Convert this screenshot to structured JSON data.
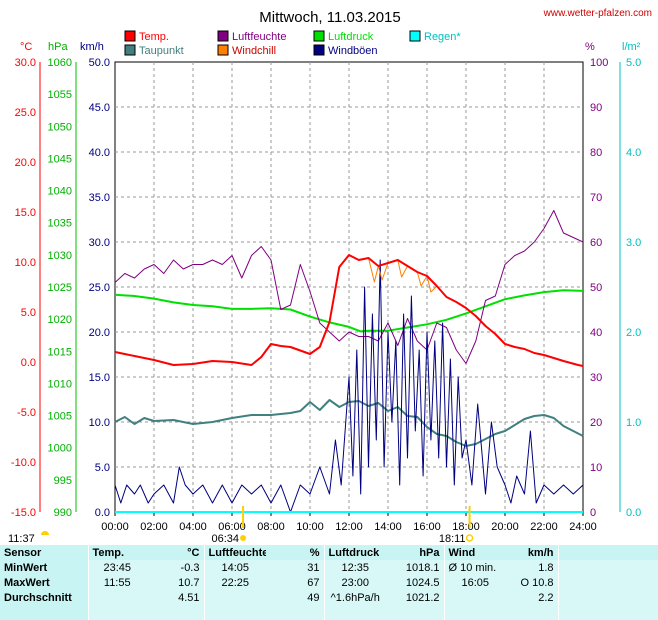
{
  "header": {
    "title": "Mittwoch, 11.03.2015",
    "site": "www.wetter-pfalzen.com"
  },
  "colors": {
    "temp": "#ff0000",
    "taupunkt": "#408080",
    "luftfeuchte": "#800080",
    "windchill": "#ff8000",
    "luftdruck": "#00e000",
    "windboen": "#000080",
    "regen": "#00ffff"
  },
  "chart_data": {
    "type": "line",
    "x_axis": {
      "range_hours": [
        0,
        24
      ],
      "ticks": [
        "00:00",
        "02:00",
        "04:00",
        "06:00",
        "08:00",
        "10:00",
        "12:00",
        "14:00",
        "16:00",
        "18:00",
        "20:00",
        "22:00",
        "24:00"
      ]
    },
    "axes": {
      "temp": {
        "unit": "°C",
        "range": [
          -15,
          30
        ],
        "ticks": [
          "30.0",
          "25.0",
          "20.0",
          "15.0",
          "10.0",
          "5.0",
          "0.0",
          "-5.0",
          "-10.0",
          "-15.0"
        ]
      },
      "pressure": {
        "unit": "hPa",
        "range": [
          990,
          1060
        ],
        "ticks": [
          "1060",
          "1055",
          "1050",
          "1045",
          "1040",
          "1035",
          "1030",
          "1025",
          "1020",
          "1015",
          "1010",
          "1005",
          "1000",
          "995",
          "990"
        ]
      },
      "wind": {
        "unit": "km/h",
        "range": [
          0,
          50
        ],
        "ticks": [
          "50.0",
          "45.0",
          "40.0",
          "35.0",
          "30.0",
          "25.0",
          "20.0",
          "15.0",
          "10.0",
          "5.0",
          "0.0"
        ]
      },
      "humidity": {
        "unit": "%",
        "range": [
          0,
          100
        ],
        "ticks": [
          "100",
          "90",
          "80",
          "70",
          "60",
          "50",
          "40",
          "30",
          "20",
          "10",
          "0"
        ]
      },
      "rain": {
        "unit": "l/m²",
        "range": [
          0,
          5
        ],
        "ticks": [
          "5.0",
          "4.0",
          "3.0",
          "2.0",
          "1.0",
          "0.0"
        ]
      }
    },
    "legend": [
      {
        "key": "temp",
        "label": "Temp."
      },
      {
        "key": "luftfeuchte",
        "label": "Luftfeuchte"
      },
      {
        "key": "luftdruck",
        "label": "Luftdruck"
      },
      {
        "key": "regen",
        "label": "Regen*"
      },
      {
        "key": "taupunkt",
        "label": "Taupunkt"
      },
      {
        "key": "windchill",
        "label": "Windchill"
      },
      {
        "key": "windboen",
        "label": "Windböen"
      }
    ],
    "sun": {
      "sunrise": "06:34",
      "sunset": "18:11",
      "moonrise": "11:37"
    },
    "series": [
      {
        "key": "temp",
        "axis": "temp",
        "points": [
          [
            0,
            1.0
          ],
          [
            1,
            0.6
          ],
          [
            2,
            0.2
          ],
          [
            3,
            -0.3
          ],
          [
            4,
            -0.2
          ],
          [
            5,
            0.1
          ],
          [
            6,
            0.0
          ],
          [
            7,
            -0.3
          ],
          [
            7.5,
            0.5
          ],
          [
            8,
            1.8
          ],
          [
            8.5,
            1.6
          ],
          [
            9,
            1.5
          ],
          [
            10,
            0.8
          ],
          [
            10.5,
            1.5
          ],
          [
            11,
            4.0
          ],
          [
            11.5,
            9.5
          ],
          [
            12,
            10.7
          ],
          [
            12.5,
            10.2
          ],
          [
            13,
            10.4
          ],
          [
            13.5,
            9.6
          ],
          [
            14,
            9.9
          ],
          [
            14.5,
            10.2
          ],
          [
            15,
            9.6
          ],
          [
            15.5,
            9.0
          ],
          [
            16,
            8.6
          ],
          [
            16.5,
            7.6
          ],
          [
            17,
            6.5
          ],
          [
            17.5,
            6.0
          ],
          [
            18,
            5.4
          ],
          [
            18.5,
            4.6
          ],
          [
            19,
            3.6
          ],
          [
            19.5,
            2.8
          ],
          [
            20,
            1.8
          ],
          [
            20.5,
            1.5
          ],
          [
            21,
            1.3
          ],
          [
            21.5,
            0.9
          ],
          [
            22,
            0.7
          ],
          [
            22.5,
            0.4
          ],
          [
            23,
            0.1
          ],
          [
            23.75,
            -0.3
          ],
          [
            24,
            -0.4
          ]
        ]
      },
      {
        "key": "windchill",
        "axis": "temp",
        "points": [
          [
            13,
            10.4
          ],
          [
            13.3,
            8.0
          ],
          [
            13.5,
            9.6
          ],
          [
            13.7,
            8.2
          ],
          [
            14,
            9.9
          ],
          [
            14.5,
            10.2
          ],
          [
            14.7,
            8.5
          ],
          [
            15,
            9.6
          ],
          [
            15.5,
            9.0
          ],
          [
            15.7,
            7.6
          ],
          [
            16,
            8.6
          ],
          [
            16.2,
            7.0
          ],
          [
            16.5,
            7.6
          ]
        ]
      },
      {
        "key": "taupunkt",
        "axis": "temp",
        "points": [
          [
            0,
            -6.0
          ],
          [
            0.5,
            -5.5
          ],
          [
            1,
            -6.2
          ],
          [
            1.5,
            -5.6
          ],
          [
            2,
            -5.9
          ],
          [
            3,
            -5.8
          ],
          [
            4,
            -6.2
          ],
          [
            5,
            -6.0
          ],
          [
            6,
            -5.6
          ],
          [
            7,
            -5.3
          ],
          [
            8,
            -5.3
          ],
          [
            9,
            -5.1
          ],
          [
            9.5,
            -4.9
          ],
          [
            10,
            -4.0
          ],
          [
            10.5,
            -4.8
          ],
          [
            11,
            -3.8
          ],
          [
            11.5,
            -4.5
          ],
          [
            12,
            -4.0
          ],
          [
            12.5,
            -3.9
          ],
          [
            13,
            -4.4
          ],
          [
            13.5,
            -4.1
          ],
          [
            14,
            -4.9
          ],
          [
            14.5,
            -4.5
          ],
          [
            15,
            -5.4
          ],
          [
            15.5,
            -5.5
          ],
          [
            16,
            -6.5
          ],
          [
            16.5,
            -7.2
          ],
          [
            17,
            -7.4
          ],
          [
            17.5,
            -8.0
          ],
          [
            18,
            -8.4
          ],
          [
            18.5,
            -8.2
          ],
          [
            19,
            -7.7
          ],
          [
            19.5,
            -7.2
          ],
          [
            20,
            -6.9
          ],
          [
            20.5,
            -6.3
          ],
          [
            21,
            -5.7
          ],
          [
            21.5,
            -5.4
          ],
          [
            22,
            -5.3
          ],
          [
            22.5,
            -5.6
          ],
          [
            23,
            -6.4
          ],
          [
            24,
            -7.4
          ]
        ]
      },
      {
        "key": "luftfeuchte",
        "axis": "humidity",
        "points": [
          [
            0,
            51
          ],
          [
            0.5,
            53
          ],
          [
            1,
            52
          ],
          [
            1.5,
            54
          ],
          [
            2,
            55
          ],
          [
            2.5,
            53
          ],
          [
            3,
            56
          ],
          [
            3.5,
            54
          ],
          [
            4,
            55
          ],
          [
            4.5,
            55
          ],
          [
            5,
            56
          ],
          [
            5.5,
            55
          ],
          [
            6,
            57
          ],
          [
            6.5,
            52
          ],
          [
            7,
            57
          ],
          [
            7.5,
            59
          ],
          [
            8,
            56
          ],
          [
            8.5,
            45
          ],
          [
            9,
            46
          ],
          [
            9.5,
            55
          ],
          [
            10,
            49
          ],
          [
            10.5,
            42
          ],
          [
            11,
            40
          ],
          [
            11.5,
            38
          ],
          [
            12,
            40
          ],
          [
            12.5,
            39
          ],
          [
            13,
            39
          ],
          [
            13.5,
            38
          ],
          [
            14,
            42
          ],
          [
            14.5,
            37
          ],
          [
            15,
            43
          ],
          [
            15.5,
            38
          ],
          [
            16,
            36
          ],
          [
            16.5,
            42
          ],
          [
            17,
            41
          ],
          [
            17.5,
            36
          ],
          [
            18,
            33
          ],
          [
            18.5,
            38
          ],
          [
            19,
            47
          ],
          [
            19.5,
            48
          ],
          [
            20,
            55
          ],
          [
            20.5,
            57
          ],
          [
            21,
            58
          ],
          [
            21.5,
            60
          ],
          [
            22,
            63
          ],
          [
            22.5,
            67
          ],
          [
            23,
            62
          ],
          [
            23.5,
            61
          ],
          [
            24,
            60
          ]
        ]
      },
      {
        "key": "luftdruck",
        "axis": "pressure",
        "points": [
          [
            0,
            1023.8
          ],
          [
            1,
            1023.6
          ],
          [
            2,
            1023.2
          ],
          [
            3,
            1022.6
          ],
          [
            4,
            1022.2
          ],
          [
            5,
            1022.0
          ],
          [
            6,
            1021.6
          ],
          [
            7,
            1021.6
          ],
          [
            8,
            1021.7
          ],
          [
            9,
            1021.5
          ],
          [
            10,
            1020.4
          ],
          [
            11,
            1019.5
          ],
          [
            12,
            1018.8
          ],
          [
            12.6,
            1018.1
          ],
          [
            13,
            1018.2
          ],
          [
            14,
            1018.2
          ],
          [
            15,
            1018.7
          ],
          [
            16,
            1019.2
          ],
          [
            17,
            1019.9
          ],
          [
            18,
            1020.9
          ],
          [
            19,
            1022.0
          ],
          [
            20,
            1023.1
          ],
          [
            21,
            1023.7
          ],
          [
            22,
            1024.2
          ],
          [
            23,
            1024.5
          ],
          [
            24,
            1024.4
          ]
        ]
      },
      {
        "key": "windboen",
        "axis": "wind",
        "points": [
          [
            0,
            3
          ],
          [
            0.3,
            1
          ],
          [
            0.6,
            3
          ],
          [
            1,
            2
          ],
          [
            1.3,
            3
          ],
          [
            1.7,
            1
          ],
          [
            2,
            2
          ],
          [
            2.5,
            3
          ],
          [
            3,
            1
          ],
          [
            3.3,
            5
          ],
          [
            3.6,
            3
          ],
          [
            4,
            2
          ],
          [
            4.5,
            3
          ],
          [
            5,
            1
          ],
          [
            5.5,
            3
          ],
          [
            6,
            1
          ],
          [
            6.5,
            3
          ],
          [
            7,
            2
          ],
          [
            7.5,
            3
          ],
          [
            8,
            1
          ],
          [
            8.5,
            3
          ],
          [
            9,
            0
          ],
          [
            9.5,
            3
          ],
          [
            10,
            2
          ],
          [
            10.5,
            5
          ],
          [
            11,
            2
          ],
          [
            11.3,
            8
          ],
          [
            11.6,
            3
          ],
          [
            12,
            15
          ],
          [
            12.2,
            4
          ],
          [
            12.4,
            18
          ],
          [
            12.6,
            2
          ],
          [
            12.8,
            25
          ],
          [
            13,
            5
          ],
          [
            13.2,
            22
          ],
          [
            13.4,
            8
          ],
          [
            13.6,
            28
          ],
          [
            13.8,
            5
          ],
          [
            14,
            20
          ],
          [
            14.2,
            10
          ],
          [
            14.4,
            19
          ],
          [
            14.6,
            3
          ],
          [
            14.8,
            22
          ],
          [
            15,
            6
          ],
          [
            15.2,
            24
          ],
          [
            15.4,
            9
          ],
          [
            15.6,
            18
          ],
          [
            15.8,
            4
          ],
          [
            16,
            20
          ],
          [
            16.2,
            8
          ],
          [
            16.4,
            19
          ],
          [
            16.6,
            6
          ],
          [
            16.8,
            21
          ],
          [
            17,
            5
          ],
          [
            17.2,
            17
          ],
          [
            17.4,
            3
          ],
          [
            17.6,
            15
          ],
          [
            17.8,
            6
          ],
          [
            18,
            8
          ],
          [
            18.3,
            3
          ],
          [
            18.6,
            12
          ],
          [
            19,
            2
          ],
          [
            19.3,
            10
          ],
          [
            19.6,
            5
          ],
          [
            20,
            3
          ],
          [
            20.3,
            1
          ],
          [
            20.6,
            4
          ],
          [
            21,
            2
          ],
          [
            21.3,
            9
          ],
          [
            21.6,
            1
          ],
          [
            22,
            3
          ],
          [
            22.5,
            2
          ],
          [
            23,
            3
          ],
          [
            23.5,
            2
          ],
          [
            24,
            3
          ]
        ]
      }
    ]
  },
  "stats": {
    "headers": [
      "Sensor",
      "Temp.",
      "°C",
      "Luftfeuchte",
      "%",
      "Luftdruck",
      "hPa",
      "Wind",
      "km/h"
    ],
    "rows": [
      {
        "label": "MinWert",
        "temp_time": "23:45",
        "temp_val": "-0.3",
        "hum_time": "14:05",
        "hum_val": "31",
        "pres_time": "12:35",
        "pres_val": "1018.1",
        "wind_time": "Ø 10 min.",
        "wind_val": "1.8"
      },
      {
        "label": "MaxWert",
        "temp_time": "11:55",
        "temp_val": "10.7",
        "hum_time": "22:25",
        "hum_val": "67",
        "pres_time": "23:00",
        "pres_val": "1024.5",
        "wind_time": "16:05",
        "wind_val": "O 10.8"
      },
      {
        "label": "Durchschnitt",
        "temp_time": "",
        "temp_val": "4.51",
        "hum_time": "",
        "hum_val": "49",
        "pres_time": "^1.6hPa/h",
        "pres_val": "1021.2",
        "wind_time": "",
        "wind_val": "2.2"
      }
    ]
  }
}
